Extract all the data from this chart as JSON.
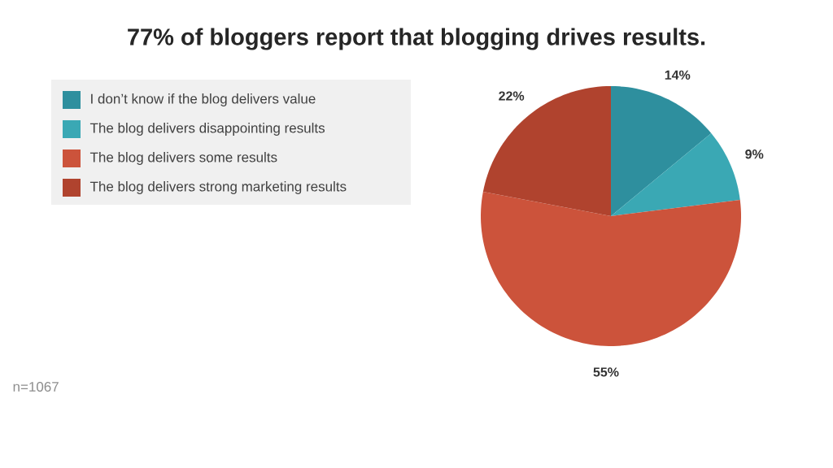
{
  "chart_data": {
    "type": "pie",
    "title": "77% of bloggers report that blogging drives results.",
    "categories": [
      "I don’t know if the blog delivers value",
      "The blog delivers disappointing results",
      "The blog delivers some results",
      "The blog delivers strong marketing results"
    ],
    "values": [
      14,
      9,
      55,
      22
    ],
    "colors": [
      "#2e8f9e",
      "#3aa8b4",
      "#cc533b",
      "#b0432e"
    ],
    "value_labels": [
      "14%",
      "9%",
      "55%",
      "22%"
    ],
    "legend": "top left",
    "annotations": [
      "n=1067"
    ]
  }
}
